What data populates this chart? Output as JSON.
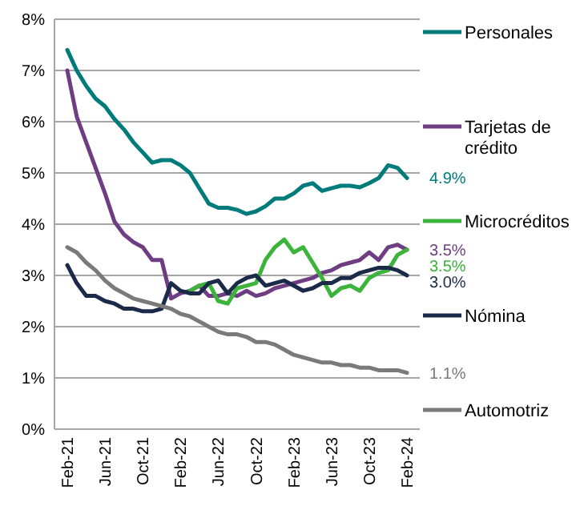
{
  "chart_data": {
    "type": "line",
    "categories": [
      "Feb-21",
      null,
      null,
      null,
      "Jun-21",
      null,
      null,
      null,
      "Oct-21",
      null,
      null,
      null,
      "Feb-22",
      null,
      null,
      null,
      "Jun-22",
      null,
      null,
      null,
      "Oct-22",
      null,
      null,
      null,
      "Feb-23",
      null,
      null,
      null,
      "Jun-23",
      null,
      null,
      null,
      "Oct-23",
      null,
      null,
      null,
      "Feb-24"
    ],
    "series": [
      {
        "name": "Personales",
        "color": "#007b7b",
        "values": [
          7.4,
          7.0,
          6.7,
          6.45,
          6.3,
          6.05,
          5.85,
          5.6,
          5.4,
          5.2,
          5.25,
          5.25,
          5.15,
          5.0,
          4.7,
          4.4,
          4.32,
          4.32,
          4.28,
          4.2,
          4.25,
          4.35,
          4.5,
          4.5,
          4.6,
          4.75,
          4.8,
          4.65,
          4.7,
          4.75,
          4.75,
          4.72,
          4.8,
          4.9,
          5.15,
          5.1,
          4.9
        ],
        "value_labels": [
          null,
          null,
          null,
          null,
          null,
          null,
          null,
          null,
          null,
          null,
          null,
          null,
          null,
          null,
          null,
          null,
          null,
          null,
          null,
          null,
          null,
          null,
          null,
          null,
          null,
          null,
          null,
          null,
          null,
          null,
          null,
          null,
          null,
          null,
          null,
          null,
          "4.9%"
        ]
      },
      {
        "name": "Tarjetas de crédito",
        "color": "#6f3d82",
        "values": [
          7.0,
          6.1,
          5.6,
          5.1,
          4.6,
          4.05,
          3.8,
          3.65,
          3.55,
          3.3,
          3.3,
          2.55,
          2.65,
          2.7,
          2.8,
          2.6,
          2.6,
          2.65,
          2.6,
          2.7,
          2.6,
          2.65,
          2.75,
          2.8,
          2.85,
          2.9,
          2.95,
          3.05,
          3.1,
          3.2,
          3.25,
          3.3,
          3.45,
          3.3,
          3.55,
          3.6,
          3.5
        ],
        "value_labels": [
          null,
          null,
          null,
          null,
          null,
          null,
          null,
          null,
          null,
          null,
          null,
          null,
          null,
          null,
          null,
          null,
          null,
          null,
          null,
          null,
          null,
          null,
          null,
          null,
          null,
          null,
          null,
          null,
          null,
          null,
          null,
          null,
          null,
          null,
          null,
          null,
          "3.5%"
        ]
      },
      {
        "name": "Microcréditos",
        "color": "#3cb43c",
        "values": [
          null,
          null,
          null,
          null,
          null,
          null,
          null,
          null,
          null,
          null,
          null,
          null,
          null,
          2.7,
          2.8,
          2.85,
          2.5,
          2.45,
          2.75,
          2.8,
          2.85,
          3.3,
          3.55,
          3.7,
          3.45,
          3.55,
          3.25,
          2.95,
          2.6,
          2.75,
          2.8,
          2.7,
          2.95,
          3.05,
          3.1,
          3.4,
          3.5
        ],
        "value_labels": [
          null,
          null,
          null,
          null,
          null,
          null,
          null,
          null,
          null,
          null,
          null,
          null,
          null,
          null,
          null,
          null,
          null,
          null,
          null,
          null,
          null,
          null,
          null,
          null,
          null,
          null,
          null,
          null,
          null,
          null,
          null,
          null,
          null,
          null,
          null,
          null,
          "3.5%"
        ]
      },
      {
        "name": "Nómina",
        "color": "#1c2a4a",
        "values": [
          3.2,
          2.85,
          2.6,
          2.6,
          2.5,
          2.45,
          2.35,
          2.35,
          2.3,
          2.3,
          2.35,
          2.85,
          2.7,
          2.65,
          2.65,
          2.85,
          2.9,
          2.65,
          2.85,
          2.95,
          3.0,
          2.8,
          2.85,
          2.9,
          2.8,
          2.7,
          2.75,
          2.85,
          2.85,
          2.95,
          2.95,
          3.05,
          3.1,
          3.15,
          3.15,
          3.1,
          3.0
        ],
        "value_labels": [
          null,
          null,
          null,
          null,
          null,
          null,
          null,
          null,
          null,
          null,
          null,
          null,
          null,
          null,
          null,
          null,
          null,
          null,
          null,
          null,
          null,
          null,
          null,
          null,
          null,
          null,
          null,
          null,
          null,
          null,
          null,
          null,
          null,
          null,
          null,
          null,
          "3.0%"
        ]
      },
      {
        "name": "Automotriz",
        "color": "#7a7a7a",
        "values": [
          3.55,
          3.45,
          3.25,
          3.1,
          2.9,
          2.75,
          2.65,
          2.55,
          2.5,
          2.45,
          2.4,
          2.35,
          2.25,
          2.2,
          2.1,
          2.0,
          1.9,
          1.85,
          1.85,
          1.8,
          1.7,
          1.7,
          1.65,
          1.55,
          1.45,
          1.4,
          1.35,
          1.3,
          1.3,
          1.25,
          1.25,
          1.2,
          1.2,
          1.15,
          1.15,
          1.15,
          1.1
        ],
        "value_labels": [
          null,
          null,
          null,
          null,
          null,
          null,
          null,
          null,
          null,
          null,
          null,
          null,
          null,
          null,
          null,
          null,
          null,
          null,
          null,
          null,
          null,
          null,
          null,
          null,
          null,
          null,
          null,
          null,
          null,
          null,
          null,
          null,
          null,
          null,
          null,
          null,
          "1.1%"
        ]
      }
    ],
    "ylim": [
      0,
      8
    ],
    "yticks": [
      {
        "value": 0,
        "label": "0%"
      },
      {
        "value": 1,
        "label": "1%"
      },
      {
        "value": 2,
        "label": "2%"
      },
      {
        "value": 3,
        "label": "3%"
      },
      {
        "value": 4,
        "label": "4%"
      },
      {
        "value": 5,
        "label": "5%"
      },
      {
        "value": 6,
        "label": "6%"
      },
      {
        "value": 7,
        "label": "7%"
      },
      {
        "value": 8,
        "label": "8%"
      }
    ],
    "grid": "y",
    "legend": "right",
    "marker": "none",
    "line_style": "solid"
  }
}
